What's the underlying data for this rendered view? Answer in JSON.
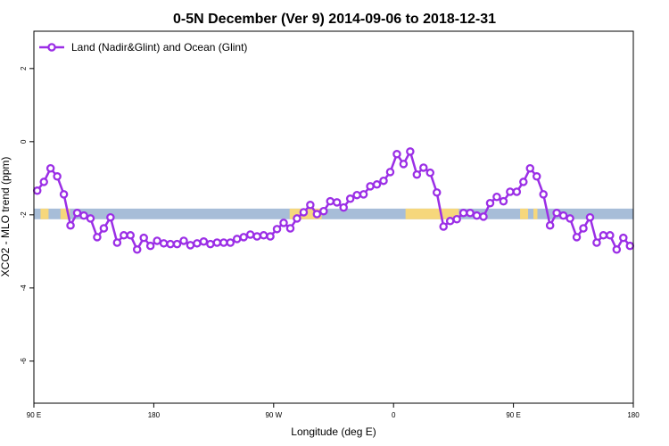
{
  "chart_data": {
    "type": "line",
    "title": "0-5N December (Ver 9)   2014-09-06 to 2018-12-31",
    "x_label": "Longitude (deg E)",
    "y_label": "XCO2 - MLO trend (ppm)",
    "xlim": [
      90,
      540
    ],
    "xticks": [
      {
        "value": 90,
        "label": "90 E"
      },
      {
        "value": 180,
        "label": "180"
      },
      {
        "value": 270,
        "label": "90 W"
      },
      {
        "value": 360,
        "label": "0"
      },
      {
        "value": 450,
        "label": "90 E"
      },
      {
        "value": 540,
        "label": "180"
      }
    ],
    "ylim": [
      -7.15,
      3.02
    ],
    "yticks": [
      -6,
      -4,
      -2,
      0,
      2
    ],
    "legend_position": "top-left",
    "surface_strip": {
      "range": [
        -2.12,
        -1.83
      ],
      "color": "#a7bdd8",
      "highlight_color": "#f6d77c",
      "highlights": [
        [
          95,
          101
        ],
        [
          110,
          117
        ],
        [
          282,
          306
        ],
        [
          369,
          409
        ],
        [
          455,
          461
        ],
        [
          465,
          468
        ]
      ]
    },
    "series": [
      {
        "name": "Land (Nadir&Glint) and Ocean (Glint)",
        "color": "#9b2ee6",
        "x": [
          92.5,
          97.5,
          102.5,
          107.5,
          112.5,
          117.5,
          122.5,
          127.5,
          132.5,
          137.5,
          142.5,
          147.5,
          152.5,
          157.5,
          162.5,
          167.5,
          172.5,
          177.5,
          182.5,
          187.5,
          192.5,
          197.5,
          202.5,
          207.5,
          212.5,
          217.5,
          222.5,
          227.5,
          232.5,
          237.5,
          242.5,
          247.5,
          252.5,
          257.5,
          262.5,
          267.5,
          272.5,
          277.5,
          282.5,
          287.5,
          292.5,
          297.5,
          302.5,
          307.5,
          312.5,
          317.5,
          322.5,
          327.5,
          332.5,
          337.5,
          342.5,
          347.5,
          352.5,
          357.5,
          362.5,
          367.5,
          372.5,
          377.5,
          382.5,
          387.5,
          392.5,
          397.5,
          402.5,
          407.5,
          412.5,
          417.5,
          422.5,
          427.5,
          432.5,
          437.5,
          442.5,
          447.5,
          452.5,
          457.5,
          462.5,
          467.5,
          472.5,
          477.5,
          482.5,
          487.5,
          492.5,
          497.5,
          502.5,
          507.5,
          512.5,
          517.5,
          522.5,
          527.5,
          532.5,
          537.5
        ],
        "values": [
          -1.34,
          -1.1,
          -0.73,
          -0.95,
          -1.44,
          -2.29,
          -1.95,
          -2.02,
          -2.1,
          -2.61,
          -2.37,
          -2.07,
          -2.76,
          -2.56,
          -2.56,
          -2.95,
          -2.63,
          -2.85,
          -2.71,
          -2.78,
          -2.8,
          -2.8,
          -2.71,
          -2.83,
          -2.78,
          -2.73,
          -2.8,
          -2.76,
          -2.76,
          -2.76,
          -2.66,
          -2.61,
          -2.54,
          -2.59,
          -2.56,
          -2.59,
          -2.39,
          -2.22,
          -2.37,
          -2.1,
          -1.93,
          -1.73,
          -1.98,
          -1.9,
          -1.63,
          -1.66,
          -1.8,
          -1.56,
          -1.46,
          -1.44,
          -1.22,
          -1.17,
          -1.07,
          -0.83,
          -0.34,
          -0.61,
          -0.27,
          -0.9,
          -0.71,
          -0.85,
          -1.39,
          -2.32,
          -2.17,
          -2.12,
          -1.95,
          -1.95,
          -2.02,
          -2.05,
          -1.68,
          -1.51,
          -1.63,
          -1.37,
          -1.37,
          -1.1,
          -0.73,
          -0.95,
          -1.44,
          -2.29,
          -1.95,
          -2.02,
          -2.1,
          -2.61,
          -2.37,
          -2.07,
          -2.76,
          -2.56,
          -2.56,
          -2.95,
          -2.63,
          -2.85
        ]
      }
    ]
  }
}
